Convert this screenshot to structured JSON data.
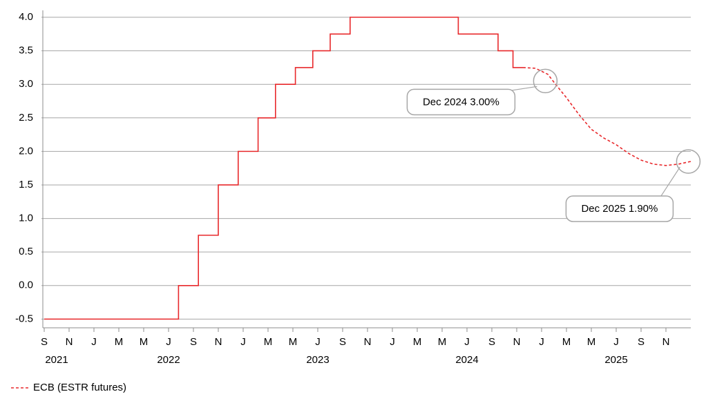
{
  "chart_data": {
    "type": "line",
    "xlim": [
      8,
      60
    ],
    "ylim": [
      -0.63,
      4.0
    ],
    "yticks": [
      {
        "value": 4.0,
        "label": "4.0"
      },
      {
        "value": 3.5,
        "label": "3.5"
      },
      {
        "value": 3.0,
        "label": "3.0"
      },
      {
        "value": 2.5,
        "label": "2.5"
      },
      {
        "value": 2.0,
        "label": "2.0"
      },
      {
        "value": 1.5,
        "label": "1.5"
      },
      {
        "value": 1.0,
        "label": "1.0"
      },
      {
        "value": 0.5,
        "label": "0.5"
      },
      {
        "value": 0.0,
        "label": "0.0"
      },
      {
        "value": -0.5,
        "label": "-0.5"
      }
    ],
    "xticks": [
      {
        "value": 8,
        "label": "S"
      },
      {
        "value": 10,
        "label": "N"
      },
      {
        "value": 12,
        "label": "J"
      },
      {
        "value": 14,
        "label": "M"
      },
      {
        "value": 16,
        "label": "M"
      },
      {
        "value": 18,
        "label": "J"
      },
      {
        "value": 20,
        "label": "S"
      },
      {
        "value": 22,
        "label": "N"
      },
      {
        "value": 24,
        "label": "J"
      },
      {
        "value": 26,
        "label": "M"
      },
      {
        "value": 28,
        "label": "M"
      },
      {
        "value": 30,
        "label": "J"
      },
      {
        "value": 32,
        "label": "S"
      },
      {
        "value": 34,
        "label": "N"
      },
      {
        "value": 36,
        "label": "J"
      },
      {
        "value": 38,
        "label": "M"
      },
      {
        "value": 40,
        "label": "M"
      },
      {
        "value": 42,
        "label": "J"
      },
      {
        "value": 44,
        "label": "S"
      },
      {
        "value": 46,
        "label": "N"
      },
      {
        "value": 48,
        "label": "J"
      },
      {
        "value": 50,
        "label": "M"
      },
      {
        "value": 52,
        "label": "M"
      },
      {
        "value": 54,
        "label": "J"
      },
      {
        "value": 56,
        "label": "S"
      },
      {
        "value": 58,
        "label": "N"
      }
    ],
    "year_labels": [
      {
        "value": 9,
        "label": "2021"
      },
      {
        "value": 18,
        "label": "2022"
      },
      {
        "value": 30,
        "label": "2023"
      },
      {
        "value": 42,
        "label": "2024"
      },
      {
        "value": 54,
        "label": "2025"
      }
    ],
    "grid": true,
    "series": [
      {
        "name": "ECB (ESTR futures)",
        "color": "#e8282b",
        "dashed": true,
        "x": [
          46.5,
          47.5,
          48.5,
          49,
          50,
          51,
          52,
          53,
          54,
          55,
          56,
          57,
          58,
          59,
          60
        ],
        "values": [
          3.25,
          3.24,
          3.15,
          3.03,
          2.8,
          2.55,
          2.33,
          2.2,
          2.1,
          1.97,
          1.87,
          1.81,
          1.79,
          1.81,
          1.85
        ]
      },
      {
        "color": "#e8282b",
        "dashed": false,
        "x": [
          8,
          18.8,
          18.8,
          20.4,
          20.4,
          22.0,
          22.0,
          23.6,
          23.6,
          25.2,
          25.2,
          26.6,
          26.6,
          28.2,
          28.2,
          29.6,
          29.6,
          31.0,
          31.0,
          32.6,
          32.6,
          41.3,
          41.3,
          44.5,
          44.5,
          45.7,
          45.7,
          46.5
        ],
        "values": [
          -0.5,
          -0.5,
          0,
          0,
          0.75,
          0.75,
          1.5,
          1.5,
          2,
          2,
          2.5,
          2.5,
          3,
          3,
          3.25,
          3.25,
          3.5,
          3.5,
          3.75,
          3.75,
          4,
          4,
          3.75,
          3.75,
          3.5,
          3.5,
          3.25,
          3.25
        ]
      }
    ],
    "annotations": [
      {
        "text": "Dec 2024 3.00%",
        "x": 48.3,
        "y": 3.05
      },
      {
        "text": "Dec 2025 1.90%",
        "x": 59.8,
        "y": 1.85
      }
    ]
  }
}
